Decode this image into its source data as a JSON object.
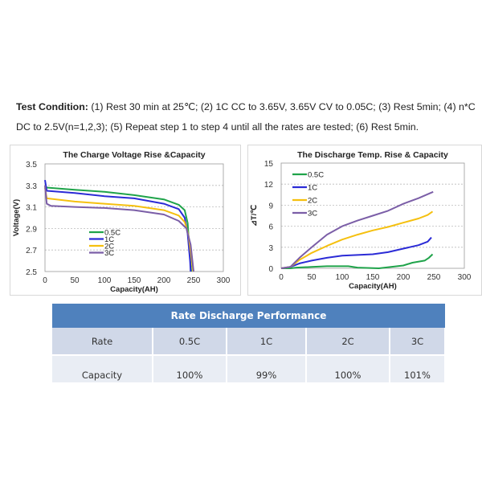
{
  "test_condition": {
    "label": "Test Condition:",
    "line1": " (1) Rest 30 min at 25℃; (2) 1C CC to 3.65V, 3.65V CV to 0.05C; (3) Rest 5min; (4) n*C",
    "line2": "DC to 2.5V(n=1,2,3); (5) Repeat step 1 to step 4 until all the rates are tested; (6) Rest 5min."
  },
  "chart_data": [
    {
      "type": "line",
      "title": "The Charge Voltage Rise &Capacity",
      "xlabel": "Capacity(AH)",
      "ylabel": "Voltage(V)",
      "xlim": [
        0,
        300
      ],
      "ylim": [
        2.5,
        3.5
      ],
      "xticks": [
        "0",
        "50",
        "100",
        "150",
        "200",
        "250",
        "300"
      ],
      "yticks": [
        "2.5",
        "2.7",
        "2.9",
        "3.1",
        "3.3",
        "3.5"
      ],
      "grid": "horizontal dashed",
      "legend": "center-left",
      "series": [
        {
          "name": "0.5C",
          "color": "#1fa34a",
          "x": [
            0,
            3,
            50,
            100,
            150,
            200,
            225,
            235,
            240,
            243,
            246
          ],
          "y": [
            3.3,
            3.28,
            3.26,
            3.24,
            3.21,
            3.17,
            3.12,
            3.07,
            2.95,
            2.7,
            2.5
          ]
        },
        {
          "name": "1C",
          "color": "#2b2bd6",
          "x": [
            0,
            3,
            50,
            100,
            150,
            200,
            225,
            235,
            240,
            244,
            245
          ],
          "y": [
            3.35,
            3.25,
            3.23,
            3.2,
            3.18,
            3.13,
            3.08,
            3.0,
            2.85,
            2.6,
            2.5
          ]
        },
        {
          "name": "2C",
          "color": "#f5c00f",
          "x": [
            0,
            3,
            50,
            100,
            150,
            200,
            225,
            235,
            241,
            246,
            249
          ],
          "y": [
            3.28,
            3.18,
            3.15,
            3.13,
            3.11,
            3.07,
            3.02,
            2.96,
            2.85,
            2.65,
            2.5
          ]
        },
        {
          "name": "3C",
          "color": "#7b5ea7",
          "x": [
            0,
            3,
            10,
            50,
            100,
            150,
            200,
            225,
            238,
            245,
            250
          ],
          "y": [
            3.3,
            3.13,
            3.11,
            3.1,
            3.09,
            3.07,
            3.03,
            2.97,
            2.9,
            2.75,
            2.5
          ]
        }
      ]
    },
    {
      "type": "line",
      "title": "The Discharge Temp. Rise & Capacity",
      "xlabel": "Capacity(AH)",
      "ylabel": "⊿T/℃",
      "xlim": [
        0,
        300
      ],
      "ylim": [
        0,
        15
      ],
      "xticks": [
        "0",
        "50",
        "100",
        "150",
        "200",
        "250",
        "300"
      ],
      "yticks": [
        "0",
        "3",
        "6",
        "9",
        "12",
        "15"
      ],
      "grid": "horizontal dashed",
      "legend": "top-left",
      "series": [
        {
          "name": "0.5C",
          "color": "#1fa34a",
          "x": [
            0,
            15,
            25,
            50,
            75,
            110,
            125,
            160,
            180,
            200,
            215,
            235,
            242,
            248
          ],
          "y": [
            0,
            0,
            0.1,
            0.2,
            0.3,
            0.3,
            0.1,
            0,
            0.2,
            0.4,
            0.8,
            1.1,
            1.5,
            2
          ]
        },
        {
          "name": "1C",
          "color": "#2b2bd6",
          "x": [
            0,
            15,
            30,
            50,
            75,
            100,
            125,
            150,
            175,
            200,
            225,
            240,
            246
          ],
          "y": [
            0,
            0.2,
            0.7,
            1.1,
            1.5,
            1.8,
            1.9,
            2.0,
            2.3,
            2.8,
            3.3,
            3.8,
            4.4
          ]
        },
        {
          "name": "2C",
          "color": "#f5c00f",
          "x": [
            0,
            15,
            30,
            50,
            75,
            100,
            125,
            150,
            175,
            200,
            225,
            240,
            248
          ],
          "y": [
            0,
            0.2,
            1.2,
            2.2,
            3.2,
            4.1,
            4.8,
            5.4,
            5.9,
            6.5,
            7.1,
            7.6,
            8.1
          ]
        },
        {
          "name": "3C",
          "color": "#7b5ea7",
          "x": [
            0,
            15,
            30,
            50,
            75,
            100,
            125,
            150,
            175,
            200,
            225,
            249
          ],
          "y": [
            0,
            0.2,
            1.5,
            3.0,
            4.8,
            6.0,
            6.8,
            7.5,
            8.2,
            9.2,
            10.0,
            10.9
          ]
        }
      ]
    }
  ],
  "table": {
    "title": "Rate Discharge Performance",
    "rows": [
      [
        "Rate",
        "0.5C",
        "1C",
        "2C",
        "3C"
      ],
      [
        "Capacity",
        "100%",
        "99%",
        "100%",
        "101%"
      ]
    ]
  }
}
